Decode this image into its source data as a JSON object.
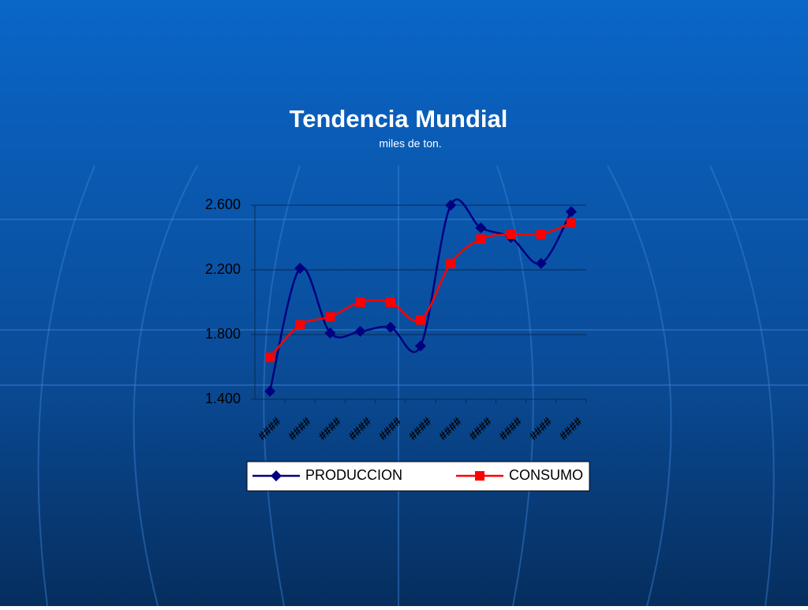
{
  "chart_data": {
    "type": "line",
    "title": "Tendencia Mundial",
    "subtitle": "miles de ton.",
    "categories": [
      "####",
      "####",
      "####",
      "####",
      "####",
      "####",
      "####",
      "####",
      "####",
      "####",
      "####"
    ],
    "series": [
      {
        "name": "PRODUCCION",
        "color": "#000080",
        "marker": "diamond",
        "values": [
          1450,
          2210,
          1810,
          1820,
          1845,
          1730,
          2600,
          2460,
          2400,
          2240,
          2560
        ]
      },
      {
        "name": "CONSUMO",
        "color": "#ff0000",
        "marker": "square",
        "values": [
          1660,
          1860,
          1910,
          2000,
          2000,
          1890,
          2240,
          2390,
          2420,
          2420,
          2490
        ]
      }
    ],
    "ylim": [
      1400,
      2600
    ],
    "yticks": [
      {
        "value": 1400,
        "label": "1.400"
      },
      {
        "value": 1800,
        "label": "1.800"
      },
      {
        "value": 2200,
        "label": "2.200"
      },
      {
        "value": 2600,
        "label": "2.600"
      }
    ],
    "grid": true,
    "legend": "bottom",
    "smooth": true
  }
}
